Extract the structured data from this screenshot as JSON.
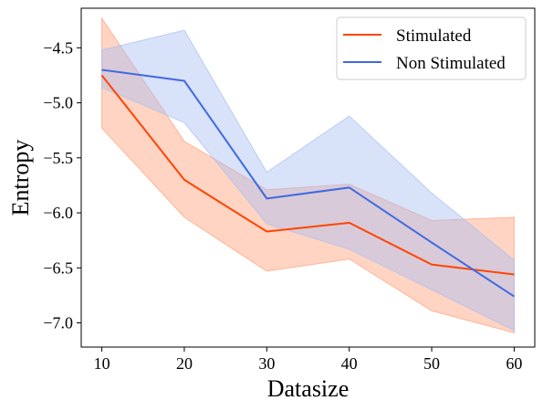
{
  "chart_data": {
    "type": "line",
    "title": "",
    "xlabel": "Datasize",
    "ylabel": "Entropy",
    "x": [
      10,
      20,
      30,
      40,
      50,
      60
    ],
    "xlim": [
      7.5,
      62.5
    ],
    "ylim": [
      -7.22,
      -4.14
    ],
    "xticks": [
      10,
      20,
      30,
      40,
      50,
      60
    ],
    "yticks": [
      -4.5,
      -5.0,
      -5.5,
      -6.0,
      -6.5,
      -7.0
    ],
    "ytick_labels": [
      "−4.5",
      "−5.0",
      "−5.5",
      "−6.0",
      "−6.5",
      "−7.0"
    ],
    "grid": false,
    "legend_position": "top-right",
    "series": [
      {
        "name": "Stimulated",
        "color": "#ff4500",
        "band_color": "#ffa07a",
        "values": [
          -4.75,
          -5.7,
          -6.17,
          -6.09,
          -6.47,
          -6.56
        ],
        "lower": [
          -5.23,
          -6.04,
          -6.53,
          -6.42,
          -6.89,
          -7.09
        ],
        "upper": [
          -4.23,
          -5.35,
          -5.79,
          -5.74,
          -6.07,
          -6.04
        ]
      },
      {
        "name": "Non Stimulated",
        "color": "#4169e1",
        "band_color": "#a9bff2",
        "values": [
          -4.7,
          -4.8,
          -5.87,
          -5.77,
          -6.27,
          -6.76
        ],
        "lower": [
          -4.86,
          -5.18,
          -6.1,
          -6.33,
          -6.7,
          -7.07
        ],
        "upper": [
          -4.52,
          -4.34,
          -5.63,
          -5.12,
          -5.82,
          -6.43
        ]
      }
    ]
  }
}
